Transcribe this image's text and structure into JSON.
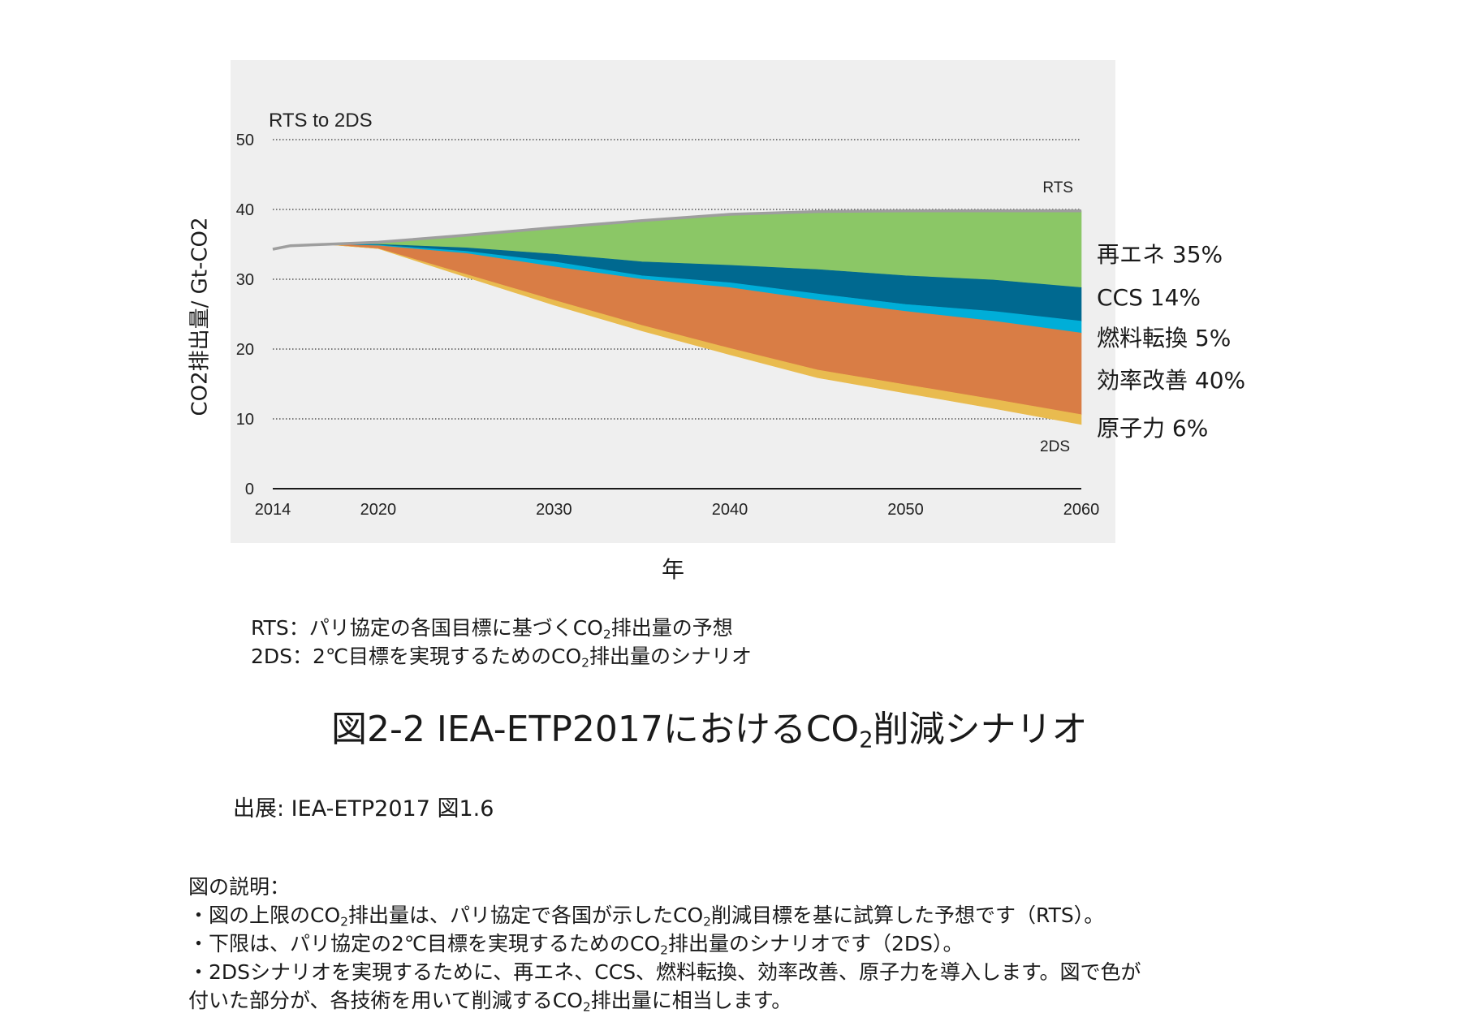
{
  "chart_data": {
    "type": "area",
    "panel_title": "RTS to 2DS",
    "xlabel": "年",
    "ylabel": "CO2排出量/ Gt-CO2",
    "xlim": [
      2014,
      2060
    ],
    "ylim": [
      0,
      50
    ],
    "x_ticks": [
      2014,
      2020,
      2030,
      2040,
      2050,
      2060
    ],
    "y_ticks": [
      0,
      10,
      20,
      30,
      40,
      50
    ],
    "grid": "dotted horizontal",
    "x": [
      2014,
      2015,
      2017,
      2020,
      2025,
      2030,
      2035,
      2040,
      2045,
      2050,
      2055,
      2060
    ],
    "boundaries": {
      "RTS": [
        34.3,
        34.8,
        35.0,
        35.3,
        36.3,
        37.4,
        38.4,
        39.3,
        39.7,
        39.8,
        39.8,
        39.8
      ],
      "renewables_lower": [
        34.3,
        34.8,
        35.0,
        35.0,
        34.5,
        33.6,
        32.5,
        32.0,
        31.4,
        30.5,
        29.9,
        28.8
      ],
      "ccs_lower": [
        34.3,
        34.8,
        35.0,
        34.9,
        34.0,
        32.5,
        30.5,
        29.5,
        27.9,
        26.4,
        25.4,
        24.0
      ],
      "fuel_switching_lower": [
        34.3,
        34.8,
        35.0,
        34.8,
        33.7,
        31.8,
        30.0,
        28.8,
        27.0,
        25.4,
        24.0,
        22.3
      ],
      "efficiency_lower": [
        34.3,
        34.8,
        35.0,
        34.4,
        30.7,
        27.0,
        23.4,
        20.1,
        17.0,
        14.9,
        12.8,
        10.6
      ],
      "2DS": [
        34.3,
        34.8,
        35.0,
        34.4,
        30.3,
        26.3,
        22.6,
        19.2,
        15.9,
        13.7,
        11.5,
        9.2
      ]
    },
    "bands": [
      {
        "name": "再エネ",
        "share": "35%",
        "color": "#8bc766",
        "upper": "RTS",
        "lower": "renewables_lower"
      },
      {
        "name": "CCS",
        "share": "14%",
        "color": "#006990",
        "upper": "renewables_lower",
        "lower": "ccs_lower"
      },
      {
        "name": "燃料転換",
        "share": "5%",
        "color": "#00aed8",
        "upper": "ccs_lower",
        "lower": "fuel_switching_lower"
      },
      {
        "name": "効率改善",
        "share": "40%",
        "color": "#d97d45",
        "upper": "fuel_switching_lower",
        "lower": "efficiency_lower"
      },
      {
        "name": "原子力",
        "share": "6%",
        "color": "#e9bb4f",
        "upper": "efficiency_lower",
        "lower": "2DS"
      }
    ],
    "line_labels": {
      "rts": "RTS",
      "twods": "2DS"
    },
    "colors": {
      "rts_line": "#9e9e9e",
      "panel_bg": "#efefef",
      "axis": "#1a1a1a"
    }
  },
  "right_labels": [
    "再エネ 35%",
    "CCS 14%",
    "燃料転換 5%",
    "効率改善 40%",
    "原子力 6%"
  ],
  "notes": {
    "rts_key": "RTS",
    "rts_colon": "：",
    "rts_before_sub": "パリ協定の各国目標に基づくCO",
    "rts_sub": "2",
    "rts_after_sub": "排出量の予想",
    "twods_key": "2DS",
    "twods_colon": "：",
    "twods_before_sub": "2℃目標を実現するためのCO",
    "twods_sub": "2",
    "twods_after_sub": "排出量のシナリオ"
  },
  "caption": {
    "before_sub": "図2-2 IEA-ETP2017におけるCO",
    "sub": "2",
    "after_sub": "削減シナリオ"
  },
  "source": "出展: IEA-ETP2017 図1.6",
  "explanation": {
    "heading": "図の説明：",
    "line1_before_sub": "・図の上限のCO",
    "line1_sub1": "2",
    "line1_middle": "排出量は、パリ協定で各国が示したCO",
    "line1_sub2": "2",
    "line1_after": "削減目標を基に試算した予想です（RTS）。",
    "line2_before_sub": "・下限は、パリ協定の2℃目標を実現するためのCO",
    "line2_sub": "2",
    "line2_after": "排出量のシナリオです（2DS）。",
    "line3": "・2DSシナリオを実現するために、再エネ、CCS、燃料転換、効率改善、原子力を導入します。図で色が",
    "line4_before_sub": "付いた部分が、各技術を用いて削減するCO",
    "line4_sub": "2",
    "line4_after": "排出量に相当します。"
  }
}
